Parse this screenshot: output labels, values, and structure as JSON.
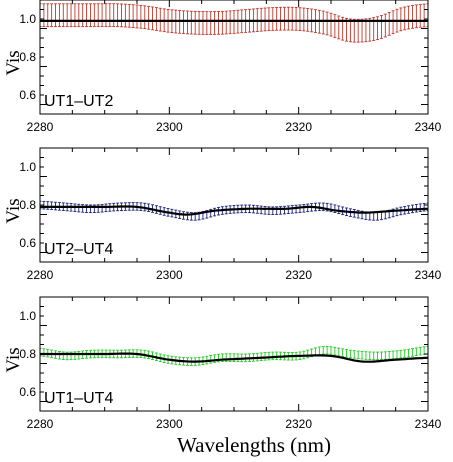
{
  "figure": {
    "xlabel": "Wavelengths (nm)"
  },
  "chart_data": [
    {
      "type": "line",
      "baseline": "UT1–UT2",
      "ylabel": "Vis",
      "xlim": [
        2280,
        2340
      ],
      "ylim": [
        0.5,
        1.1
      ],
      "xticks": [
        "2280",
        "2300",
        "2320",
        "2340"
      ],
      "yticks": [
        "0.6",
        "0.8",
        "1.0"
      ],
      "error_color": "#c0392b",
      "model_color": "#000000",
      "series": [
        {
          "kind": "model",
          "x": [
            2280,
            2290,
            2300,
            2310,
            2320,
            2330,
            2340
          ],
          "y": [
            0.99,
            0.99,
            0.99,
            0.99,
            0.99,
            0.99,
            0.99
          ]
        },
        {
          "kind": "observed",
          "x": [
            2280,
            2284,
            2288,
            2292,
            2296,
            2300,
            2304,
            2308,
            2312,
            2316,
            2320,
            2324,
            2328,
            2332,
            2336,
            2340
          ],
          "y": [
            1.02,
            1.02,
            1.02,
            1.02,
            1.01,
            0.99,
            0.98,
            0.98,
            0.99,
            1.0,
            1.0,
            0.98,
            0.94,
            0.95,
            1.0,
            1.02
          ],
          "err": [
            0.06,
            0.06,
            0.06,
            0.06,
            0.06,
            0.06,
            0.06,
            0.06,
            0.06,
            0.06,
            0.06,
            0.06,
            0.06,
            0.06,
            0.06,
            0.06
          ]
        }
      ]
    },
    {
      "type": "line",
      "baseline": "UT2–UT4",
      "ylabel": "Vis",
      "xlim": [
        2280,
        2340
      ],
      "ylim": [
        0.5,
        1.1
      ],
      "xticks": [
        "2280",
        "2300",
        "2320",
        "2340"
      ],
      "yticks": [
        "0.6",
        "0.8",
        "1.0"
      ],
      "error_color": "#1a237e",
      "model_color": "#000000",
      "series": [
        {
          "kind": "model",
          "x": [
            2280,
            2285,
            2290,
            2295,
            2300,
            2303,
            2307,
            2312,
            2318,
            2322,
            2326,
            2330,
            2335,
            2340
          ],
          "y": [
            0.79,
            0.79,
            0.79,
            0.79,
            0.76,
            0.75,
            0.77,
            0.78,
            0.78,
            0.79,
            0.77,
            0.76,
            0.77,
            0.78
          ]
        },
        {
          "kind": "observed",
          "x": [
            2280,
            2284,
            2288,
            2292,
            2296,
            2300,
            2304,
            2308,
            2312,
            2316,
            2320,
            2324,
            2328,
            2332,
            2336,
            2340
          ],
          "y": [
            0.8,
            0.79,
            0.78,
            0.79,
            0.79,
            0.76,
            0.74,
            0.77,
            0.78,
            0.77,
            0.78,
            0.79,
            0.76,
            0.74,
            0.77,
            0.79
          ],
          "err": [
            0.02,
            0.02,
            0.02,
            0.02,
            0.02,
            0.02,
            0.02,
            0.02,
            0.02,
            0.02,
            0.02,
            0.02,
            0.02,
            0.02,
            0.02,
            0.02
          ]
        }
      ]
    },
    {
      "type": "line",
      "baseline": "UT1–UT4",
      "ylabel": "Vis",
      "xlim": [
        2280,
        2340
      ],
      "ylim": [
        0.5,
        1.1
      ],
      "xticks": [
        "2280",
        "2300",
        "2320",
        "2340"
      ],
      "yticks": [
        "0.6",
        "0.8",
        "1.0"
      ],
      "error_color": "#22cc22",
      "model_color": "#000000",
      "series": [
        {
          "kind": "model",
          "x": [
            2280,
            2285,
            2290,
            2295,
            2300,
            2304,
            2308,
            2314,
            2320,
            2325,
            2330,
            2335,
            2340
          ],
          "y": [
            0.8,
            0.8,
            0.8,
            0.8,
            0.77,
            0.76,
            0.77,
            0.78,
            0.79,
            0.79,
            0.76,
            0.77,
            0.78
          ]
        },
        {
          "kind": "observed",
          "x": [
            2280,
            2284,
            2288,
            2292,
            2296,
            2300,
            2304,
            2308,
            2312,
            2316,
            2320,
            2324,
            2328,
            2332,
            2336,
            2340
          ],
          "y": [
            0.81,
            0.79,
            0.8,
            0.8,
            0.8,
            0.77,
            0.76,
            0.78,
            0.78,
            0.79,
            0.79,
            0.82,
            0.8,
            0.79,
            0.8,
            0.82
          ],
          "err": [
            0.02,
            0.02,
            0.02,
            0.02,
            0.02,
            0.02,
            0.02,
            0.02,
            0.02,
            0.02,
            0.02,
            0.02,
            0.02,
            0.02,
            0.02,
            0.02
          ]
        }
      ]
    }
  ]
}
